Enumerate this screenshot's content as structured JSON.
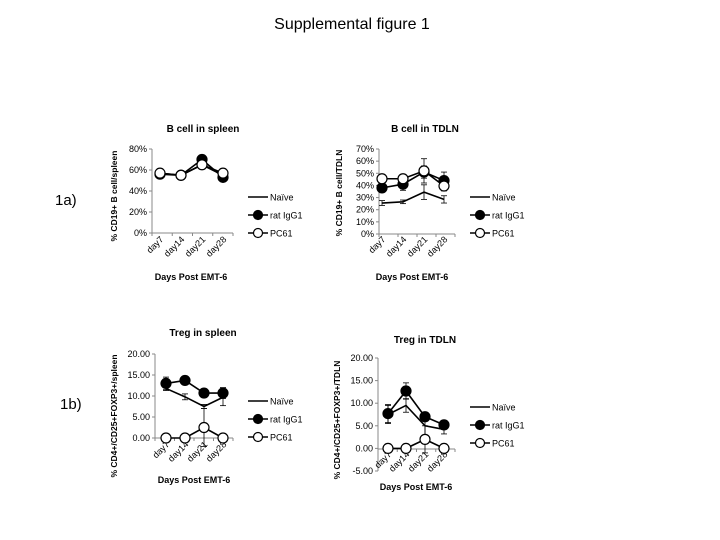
{
  "title": "Supplemental  figure 1",
  "panel_labels": [
    "1a)",
    "1b)"
  ],
  "chart_data": [
    {
      "type": "line",
      "title": "B cell in spleen",
      "xlabel": "Days Post EMT-6",
      "ylabel": "% CD19+ B cell/spleen",
      "categories": [
        "day7",
        "day14",
        "day21",
        "day28"
      ],
      "ylim": [
        0,
        80
      ],
      "yticks": [
        "0%",
        "20%",
        "40%",
        "60%",
        "80%"
      ],
      "ytick_values": [
        0,
        20,
        40,
        60,
        80
      ],
      "legend": "right",
      "grid": false,
      "series": [
        {
          "name": "Naïve",
          "marker": "none",
          "values": [
            57,
            55,
            65,
            55
          ],
          "errors": [
            1,
            1,
            3,
            2
          ]
        },
        {
          "name": "rat IgG1",
          "marker": "filled-circle",
          "values": [
            56,
            55,
            70,
            53
          ],
          "errors": [
            1,
            1,
            3,
            3
          ]
        },
        {
          "name": "PC61",
          "marker": "open-circle",
          "values": [
            57,
            55,
            65,
            57
          ],
          "errors": [
            1,
            1,
            3,
            2
          ]
        }
      ]
    },
    {
      "type": "line",
      "title": "B cell in TDLN",
      "xlabel": "Days Post EMT-6",
      "ylabel": "% CD19+ B cell/TDLN",
      "categories": [
        "day7",
        "day14",
        "day21",
        "day28"
      ],
      "ylim": [
        0,
        70
      ],
      "yticks": [
        "0%",
        "10%",
        "20%",
        "30%",
        "40%",
        "50%",
        "60%",
        "70%"
      ],
      "ytick_values": [
        0,
        10,
        20,
        30,
        40,
        50,
        60,
        70
      ],
      "legend": "right",
      "grid": false,
      "series": [
        {
          "name": "Naïve",
          "marker": "none",
          "values": [
            25.5,
            26.5,
            34.5,
            28.5
          ],
          "errors": [
            2,
            1.5,
            6,
            3
          ]
        },
        {
          "name": "rat IgG1",
          "marker": "filled-circle",
          "values": [
            38,
            41,
            51,
            44
          ],
          "errors": [
            3,
            5,
            5,
            7
          ]
        },
        {
          "name": "PC61",
          "marker": "open-circle",
          "values": [
            45.5,
            45.5,
            52,
            39.5
          ],
          "errors": [
            3,
            3,
            10,
            4
          ]
        }
      ]
    },
    {
      "type": "line",
      "title": "Treg in spleen",
      "xlabel": "Days Post EMT-6",
      "ylabel": "% CD4+/CD25+FOXP3+/spleen",
      "categories": [
        "day7",
        "day14",
        "day21",
        "day28"
      ],
      "ylim": [
        0,
        20
      ],
      "yticks": [
        "0.00",
        "5.00",
        "10.00",
        "15.00",
        "20.00"
      ],
      "ytick_values": [
        0,
        5,
        10,
        15,
        20
      ],
      "legend": "right",
      "grid": false,
      "series": [
        {
          "name": "Naïve",
          "marker": "none",
          "values": [
            11.8,
            9.8,
            7.5,
            9.7
          ],
          "errors": [
            0.5,
            0.7,
            0.5,
            2
          ]
        },
        {
          "name": "rat IgG1",
          "marker": "filled-circle",
          "values": [
            13,
            13.7,
            10.7,
            10.7
          ],
          "errors": [
            1.5,
            0.5,
            0.5,
            1.3
          ]
        },
        {
          "name": "PC61",
          "marker": "open-circle",
          "values": [
            0,
            0,
            2.5,
            0
          ],
          "errors": [
            0,
            0,
            4.5,
            0
          ]
        }
      ]
    },
    {
      "type": "line",
      "title": "Treg in TDLN",
      "xlabel": "Days Post EMT-6",
      "ylabel": "% CD4+/CD25+FOXP3+/TDLN",
      "categories": [
        "day7",
        "day14",
        "day21",
        "day28"
      ],
      "ylim": [
        -5,
        20
      ],
      "yticks": [
        "-5.00",
        "0.00",
        "5.00",
        "10.00",
        "15.00",
        "20.00"
      ],
      "ytick_values": [
        -5,
        0,
        5,
        10,
        15,
        20
      ],
      "legend": "right",
      "grid": false,
      "series": [
        {
          "name": "Naïve",
          "marker": "none",
          "values": [
            7.5,
            9.5,
            5,
            4.2
          ],
          "errors": [
            2,
            1.5,
            2.5,
            1
          ]
        },
        {
          "name": "rat IgG1",
          "marker": "filled-circle",
          "values": [
            7.7,
            12.7,
            7,
            5.2
          ],
          "errors": [
            2,
            1.8,
            0.5,
            0.5
          ]
        },
        {
          "name": "PC61",
          "marker": "open-circle",
          "values": [
            0,
            0,
            2,
            0
          ],
          "errors": [
            0,
            0,
            3,
            0
          ]
        }
      ]
    }
  ]
}
